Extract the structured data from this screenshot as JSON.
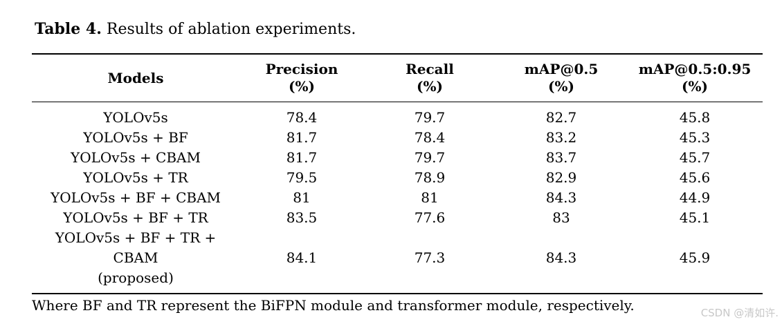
{
  "caption": {
    "label": "Table 4.",
    "text": " Results of ablation experiments."
  },
  "table": {
    "header": {
      "models": "Models",
      "cols": [
        {
          "line1": "Precision",
          "line2": "(%)"
        },
        {
          "line1": "Recall",
          "line2": "(%)"
        },
        {
          "line1": "mAP@0.5",
          "line2": "(%)"
        },
        {
          "line1": "mAP@0.5:0.95",
          "line2": "(%)"
        }
      ]
    },
    "rows": [
      {
        "model": "YOLOv5s",
        "values": [
          "78.4",
          "79.7",
          "82.7",
          "45.8"
        ]
      },
      {
        "model": "YOLOv5s + BF",
        "values": [
          "81.7",
          "78.4",
          "83.2",
          "45.3"
        ]
      },
      {
        "model": "YOLOv5s + CBAM",
        "values": [
          "81.7",
          "79.7",
          "83.7",
          "45.7"
        ]
      },
      {
        "model": "YOLOv5s + TR",
        "values": [
          "79.5",
          "78.9",
          "82.9",
          "45.6"
        ]
      },
      {
        "model": "YOLOv5s + BF + CBAM",
        "values": [
          "81",
          "81",
          "84.3",
          "44.9"
        ]
      },
      {
        "model": "YOLOv5s + BF + TR",
        "values": [
          "83.5",
          "77.6",
          "83",
          "45.1"
        ]
      },
      {
        "model_lines": [
          "YOLOv5s + BF + TR +",
          "CBAM",
          "(proposed)"
        ],
        "values": [
          "84.1",
          "77.3",
          "84.3",
          "45.9"
        ]
      }
    ],
    "footnote": "Where BF and TR represent the BiFPN module and transformer module, respectively."
  },
  "watermark": "CSDN @清如许."
}
